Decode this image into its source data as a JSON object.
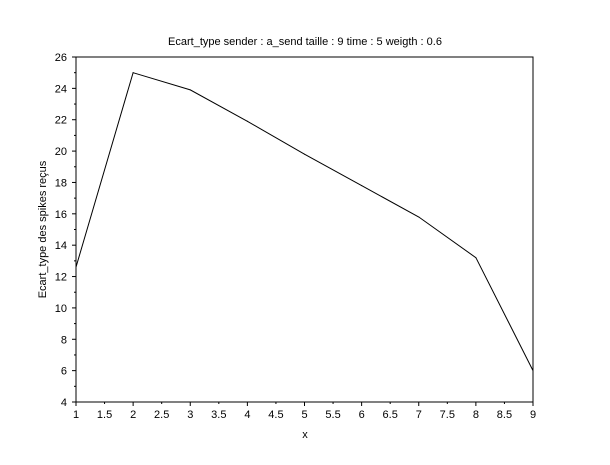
{
  "chart_data": {
    "type": "line",
    "title": "Ecart_type sender : a_send taille : 9 time : 5 weigth : 0.6",
    "xlabel": "x",
    "ylabel": "Ecart_type des spikes reçus",
    "xlim": [
      1,
      9
    ],
    "ylim": [
      4,
      26
    ],
    "x_ticks": [
      "1",
      "1.5",
      "2",
      "2.5",
      "3",
      "3.5",
      "4",
      "4.5",
      "5",
      "5.5",
      "6",
      "6.5",
      "7",
      "7.5",
      "8",
      "8.5",
      "9"
    ],
    "y_ticks": [
      "4",
      "6",
      "8",
      "10",
      "12",
      "14",
      "16",
      "18",
      "20",
      "22",
      "24",
      "26"
    ],
    "grid": false,
    "line_color": "#000000",
    "series": [
      {
        "x": [
          1,
          2,
          3,
          4,
          5,
          6,
          7,
          8,
          9
        ],
        "y": [
          12.6,
          25.0,
          23.9,
          21.9,
          19.8,
          17.8,
          15.8,
          13.2,
          6.0
        ]
      }
    ]
  }
}
